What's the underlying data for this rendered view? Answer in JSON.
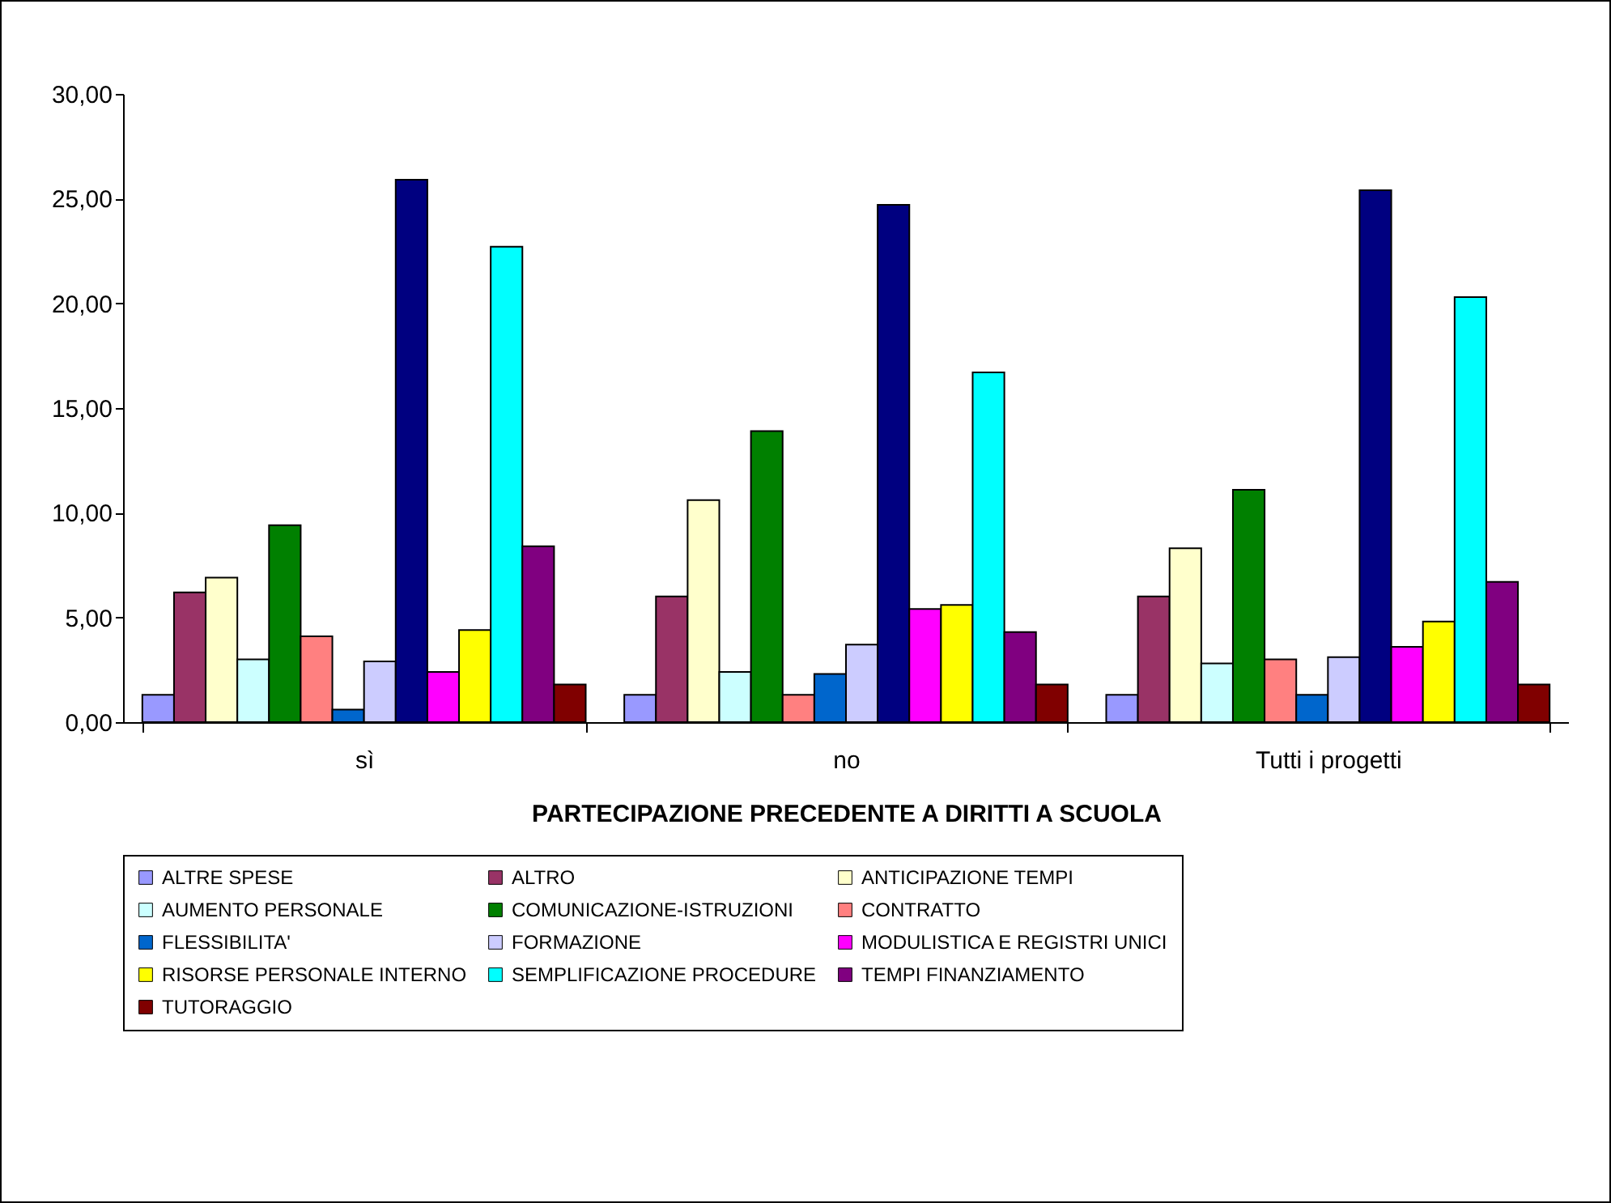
{
  "chart_data": {
    "type": "bar",
    "xlabel": "PARTECIPAZIONE PRECEDENTE A DIRITTI A SCUOLA",
    "categories": [
      "sì",
      "no",
      "Tutti i progetti"
    ],
    "ylim": [
      0,
      30
    ],
    "yticks": [
      {
        "value": 0,
        "label": "0,00"
      },
      {
        "value": 5,
        "label": "5,00"
      },
      {
        "value": 10,
        "label": "10,00"
      },
      {
        "value": 15,
        "label": "15,00"
      },
      {
        "value": 20,
        "label": "20,00"
      },
      {
        "value": 25,
        "label": "25,00"
      },
      {
        "value": 30,
        "label": "30,00"
      }
    ],
    "grid": false,
    "legend": "bottom",
    "series": [
      {
        "name": "ALTRE SPESE",
        "color": "#9999ff",
        "values": [
          1.3,
          1.3,
          1.3
        ]
      },
      {
        "name": "ALTRO",
        "color": "#993366",
        "values": [
          6.2,
          6.0,
          6.0
        ]
      },
      {
        "name": "ANTICIPAZIONE TEMPI",
        "color": "#ffffcc",
        "values": [
          6.9,
          10.6,
          8.3
        ]
      },
      {
        "name": "AUMENTO PERSONALE",
        "color": "#ccffff",
        "values": [
          3.0,
          2.4,
          2.8
        ]
      },
      {
        "name": "COMUNICAZIONE-ISTRUZIONI",
        "color": "#008000",
        "values": [
          9.4,
          13.9,
          11.1
        ]
      },
      {
        "name": "CONTRATTO",
        "color": "#ff8080",
        "values": [
          4.1,
          1.3,
          3.0
        ]
      },
      {
        "name": "FLESSIBILITA'",
        "color": "#0066cc",
        "values": [
          0.6,
          2.3,
          1.3
        ]
      },
      {
        "name": "FORMAZIONE",
        "color": "#ccccff",
        "values": [
          2.9,
          3.7,
          3.1
        ]
      },
      {
        "color": "#000080",
        "values": [
          25.9,
          24.7,
          25.4
        ]
      },
      {
        "name": "MODULISTICA E REGISTRI UNICI",
        "color": "#ff00ff",
        "values": [
          2.4,
          5.4,
          3.6
        ]
      },
      {
        "name": "RISORSE PERSONALE INTERNO",
        "color": "#ffff00",
        "values": [
          4.4,
          5.6,
          4.8
        ]
      },
      {
        "name": "SEMPLIFICAZIONE PROCEDURE",
        "color": "#00ffff",
        "values": [
          22.7,
          16.7,
          20.3
        ]
      },
      {
        "name": "TEMPI FINANZIAMENTO",
        "color": "#800080",
        "values": [
          8.4,
          4.3,
          6.7
        ]
      },
      {
        "name": "TUTORAGGIO",
        "color": "#800000",
        "values": [
          1.8,
          1.8,
          1.8
        ]
      }
    ]
  }
}
